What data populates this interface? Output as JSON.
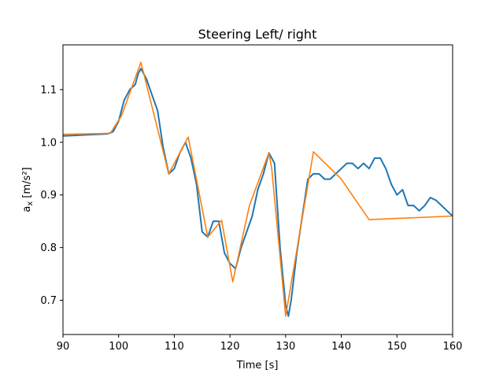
{
  "chart_data": {
    "type": "line",
    "title": "Steering Left/ right",
    "xlabel": "Time [s]",
    "ylabel": "a",
    "ylabel_sub": "x",
    "ylabel_unit": " [m/s²]",
    "xlim": [
      90,
      160
    ],
    "ylim": [
      0.635,
      1.185
    ],
    "xticks": [
      90,
      100,
      110,
      120,
      130,
      140,
      150,
      160
    ],
    "yticks": [
      0.7,
      0.8,
      0.9,
      1.0,
      1.1
    ],
    "xtick_labels": [
      "90",
      "100",
      "110",
      "120",
      "130",
      "140",
      "150",
      "160"
    ],
    "ytick_labels": [
      "0.7",
      "0.8",
      "0.9",
      "1.0",
      "1.1"
    ],
    "grid": false,
    "colors": {
      "measured": "#1f77b4",
      "model": "#ff7f0e",
      "axes": "#000000"
    },
    "series": [
      {
        "key": "measured",
        "x": [
          90,
          92,
          94,
          96,
          98,
          99,
          100,
          101,
          102,
          103,
          103.5,
          104,
          105,
          106,
          107,
          108,
          109,
          110,
          111,
          112,
          113,
          114,
          115,
          116,
          117,
          118,
          119,
          120,
          121,
          122,
          123,
          124,
          125,
          126,
          127,
          128,
          129,
          130,
          130.5,
          131,
          132,
          133,
          134,
          135,
          136,
          137,
          138,
          139,
          140,
          141,
          142,
          143,
          144,
          145,
          146,
          147,
          148,
          149,
          150,
          151,
          152,
          153,
          154,
          155,
          156,
          157,
          158,
          159,
          160
        ],
        "y": [
          1.012,
          1.013,
          1.014,
          1.015,
          1.016,
          1.02,
          1.04,
          1.08,
          1.1,
          1.11,
          1.13,
          1.14,
          1.12,
          1.09,
          1.06,
          0.99,
          0.94,
          0.95,
          0.98,
          1.0,
          0.97,
          0.92,
          0.83,
          0.82,
          0.85,
          0.85,
          0.79,
          0.77,
          0.76,
          0.8,
          0.83,
          0.86,
          0.91,
          0.94,
          0.98,
          0.96,
          0.8,
          0.69,
          0.67,
          0.7,
          0.79,
          0.86,
          0.93,
          0.94,
          0.94,
          0.93,
          0.93,
          0.94,
          0.95,
          0.96,
          0.96,
          0.95,
          0.96,
          0.95,
          0.97,
          0.97,
          0.95,
          0.92,
          0.9,
          0.91,
          0.88,
          0.88,
          0.87,
          0.88,
          0.895,
          0.89,
          0.88,
          0.87,
          0.86
        ]
      },
      {
        "key": "model",
        "x": [
          90,
          98.5,
          100.5,
          104,
          109,
          112.5,
          116,
          118.5,
          120.5,
          123.5,
          127,
          127.5,
          130,
          135,
          140,
          145,
          160
        ],
        "y": [
          1.015,
          1.017,
          1.05,
          1.152,
          0.94,
          1.01,
          0.82,
          0.852,
          0.735,
          0.88,
          0.98,
          0.95,
          0.67,
          0.982,
          0.93,
          0.853,
          0.86
        ]
      }
    ]
  }
}
